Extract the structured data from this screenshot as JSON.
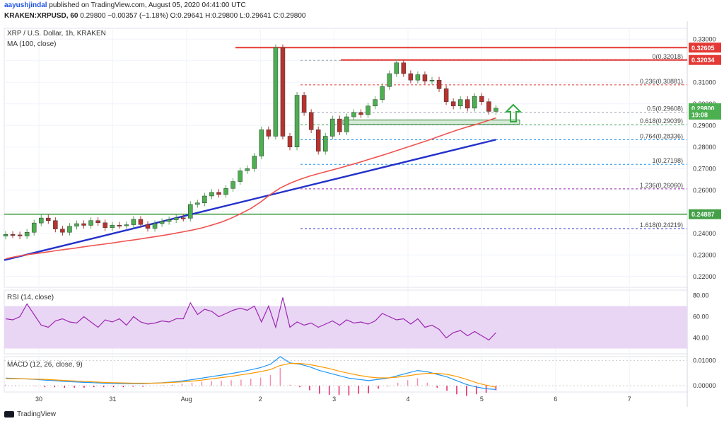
{
  "header": {
    "author": "aayushjindal",
    "published_text": "published on TradingView.com, August 05, 2020 04:41:00 UTC",
    "symbol_line": "KRAKEN:XRPUSD, 60",
    "last": "0.29800",
    "change": "−0.00357 (−1.18%)",
    "o_label": "O:",
    "o": "0.29641",
    "h_label": "H:",
    "h": "0.29800",
    "l_label": "L:",
    "l": "0.29641",
    "c_label": "C:",
    "c": "0.29800"
  },
  "legend": {
    "title": "XRP / U.S. Dollar, 1h, KRAKEN",
    "ma": "MA (100, close)",
    "rsi": "RSI (14, close)",
    "macd": "MACD (12, 26, close, 9)"
  },
  "branding": {
    "logo_text": "TradingView"
  },
  "colors": {
    "up": "#4caf50",
    "down": "#b8322e",
    "ma": "#ef5350",
    "trend": "#2331c9",
    "resistance": "#e53935",
    "support": "#43a047",
    "rsi": "#9c27b0",
    "rsi_band": "#e9d6f5",
    "macd": "#2196f3",
    "signal": "#ff9800",
    "fib": "#9aa3b0"
  },
  "chart_data": [
    {
      "type": "candlestick",
      "title": "XRP / U.S. Dollar, 1h, KRAKEN",
      "x_ticks": [
        "30",
        "31",
        "Aug",
        "2",
        "3",
        "4",
        "5",
        "6",
        "7"
      ],
      "ylim": [
        0.215,
        0.335
      ],
      "y_ticks": [
        "0.33000",
        "0.32000",
        "0.31000",
        "0.30000",
        "0.29000",
        "0.28000",
        "0.27000",
        "0.26000",
        "0.25000",
        "0.24000",
        "0.23000",
        "0.22000"
      ],
      "price_labels": [
        {
          "text": "0.32605",
          "value": 0.32605,
          "color": "#e53935"
        },
        {
          "text": "0.32034",
          "value": 0.32034,
          "color": "#e53935"
        },
        {
          "text": "0.29800",
          "value": 0.298,
          "color": "#4caf50"
        },
        {
          "text": "19:08",
          "value": 0.295,
          "color": "#4caf50"
        },
        {
          "text": "0.24887",
          "value": 0.24887,
          "color": "#43a047"
        }
      ],
      "fib_levels": [
        {
          "label": "0(0.32018)",
          "value": 0.32018
        },
        {
          "label": "0.236(0.30881)",
          "value": 0.30881,
          "color": "#e53935"
        },
        {
          "label": "0.5(0.29608)",
          "value": 0.29608
        },
        {
          "label": "0.618(0.29039)",
          "value": 0.29039,
          "color": "#4caf50"
        },
        {
          "label": "0.764(0.28336)",
          "value": 0.28336,
          "color": "#2196f3"
        },
        {
          "label": "1(0.27198)",
          "value": 0.27198,
          "color": "#2196f3"
        },
        {
          "label": "1.236(0.26060)",
          "value": 0.2606,
          "color": "#9c27b0"
        },
        {
          "label": "1.618(0.24219)",
          "value": 0.24219,
          "color": "#2331c9"
        }
      ],
      "resistance_levels": [
        0.32605,
        0.32034
      ],
      "support_level": 0.24887,
      "support_zone": [
        0.2905,
        0.2925
      ],
      "trend_line": {
        "from_x": 0,
        "from": 0.2276,
        "to_x": 69,
        "to": 0.2834
      },
      "candles_close": [
        0.2395,
        0.2393,
        0.2388,
        0.2405,
        0.2448,
        0.2471,
        0.2459,
        0.242,
        0.2405,
        0.2433,
        0.2445,
        0.2437,
        0.2459,
        0.2449,
        0.2426,
        0.2438,
        0.2437,
        0.244,
        0.2465,
        0.2441,
        0.2423,
        0.2445,
        0.2455,
        0.2463,
        0.2472,
        0.247,
        0.2534,
        0.2541,
        0.2573,
        0.259,
        0.258,
        0.2608,
        0.264,
        0.269,
        0.27,
        0.2758,
        0.288,
        0.285,
        0.326,
        0.285,
        0.28,
        0.304,
        0.296,
        0.288,
        0.278,
        0.285,
        0.293,
        0.287,
        0.294,
        0.296,
        0.295,
        0.299,
        0.302,
        0.308,
        0.314,
        0.319,
        0.314,
        0.311,
        0.3135,
        0.3105,
        0.311,
        0.307,
        0.301,
        0.299,
        0.302,
        0.298,
        0.3035,
        0.301,
        0.2965,
        0.298
      ],
      "ma_100": [
        0.2282,
        0.2292,
        0.23,
        0.2306,
        0.2312,
        0.2319,
        0.2325,
        0.2331,
        0.2338,
        0.2344,
        0.235,
        0.2356,
        0.2363,
        0.2369,
        0.2376,
        0.2383,
        0.239,
        0.2398,
        0.2406,
        0.2415,
        0.2425,
        0.2438,
        0.2452,
        0.247,
        0.2492,
        0.2515,
        0.2545,
        0.258,
        0.261,
        0.2632,
        0.265,
        0.2665,
        0.2678,
        0.269,
        0.2702,
        0.2715,
        0.2728,
        0.2742,
        0.2756,
        0.277,
        0.2785,
        0.28,
        0.2815,
        0.283,
        0.2846,
        0.2862,
        0.2878,
        0.2892,
        0.2905,
        0.292,
        0.2935
      ]
    },
    {
      "type": "line",
      "title": "RSI (14, close)",
      "ylim": [
        25,
        85
      ],
      "y_ticks": [
        "80.00",
        "60.00",
        "40.00"
      ],
      "band": [
        30,
        70
      ],
      "series": [
        {
          "name": "RSI (14, close)",
          "values": [
            58,
            57,
            60,
            72,
            62,
            52,
            50,
            56,
            58,
            55,
            54,
            60,
            55,
            50,
            57,
            55,
            58,
            52,
            60,
            55,
            53,
            54,
            56,
            55,
            58,
            58,
            73,
            62,
            67,
            65,
            60,
            63,
            66,
            68,
            66,
            70,
            55,
            70,
            50,
            78,
            50,
            55,
            52,
            54,
            50,
            53,
            56,
            52,
            57,
            54,
            55,
            53,
            56,
            63,
            60,
            57,
            58,
            53,
            58,
            50,
            52,
            48,
            40,
            45,
            47,
            42,
            46,
            42,
            38,
            45
          ]
        }
      ]
    },
    {
      "type": "line",
      "title": "MACD (12, 26, close, 9)",
      "ylim": [
        -0.0025,
        0.0115
      ],
      "y_ticks": [
        "0.01000",
        "0.00000"
      ],
      "series": [
        {
          "name": "MACD",
          "values": [
            0.003,
            0.0029,
            0.0027,
            0.0025,
            0.0022,
            0.002,
            0.0017,
            0.0015,
            0.0013,
            0.0012,
            0.001,
            0.0009,
            0.0008,
            0.0008,
            0.0008,
            0.001,
            0.0012,
            0.0015,
            0.0019,
            0.0024,
            0.003,
            0.0036,
            0.0042,
            0.0048,
            0.0055,
            0.0063,
            0.0072,
            0.0085,
            0.0115,
            0.009,
            0.0085,
            0.0075,
            0.006,
            0.005,
            0.004,
            0.003,
            0.0025,
            0.002,
            0.0025,
            0.003,
            0.004,
            0.005,
            0.006,
            0.0055,
            0.0045,
            0.0035,
            0.002,
            0.0005,
            -0.0005,
            -0.0012,
            -0.0015
          ]
        },
        {
          "name": "Signal",
          "values": [
            0.0028,
            0.0028,
            0.0027,
            0.0026,
            0.0025,
            0.0023,
            0.0021,
            0.0019,
            0.0017,
            0.0015,
            0.0013,
            0.0012,
            0.0011,
            0.001,
            0.001,
            0.001,
            0.0011,
            0.0013,
            0.0015,
            0.0018,
            0.0022,
            0.0027,
            0.0032,
            0.0037,
            0.0043,
            0.0049,
            0.0056,
            0.0064,
            0.008,
            0.0088,
            0.0088,
            0.0084,
            0.0076,
            0.0068,
            0.0058,
            0.0049,
            0.0041,
            0.0035,
            0.0031,
            0.0031,
            0.0034,
            0.0039,
            0.0045,
            0.0049,
            0.0049,
            0.0045,
            0.0037,
            0.0025,
            0.0012,
            0.0002,
            -0.0006
          ]
        }
      ]
    }
  ]
}
